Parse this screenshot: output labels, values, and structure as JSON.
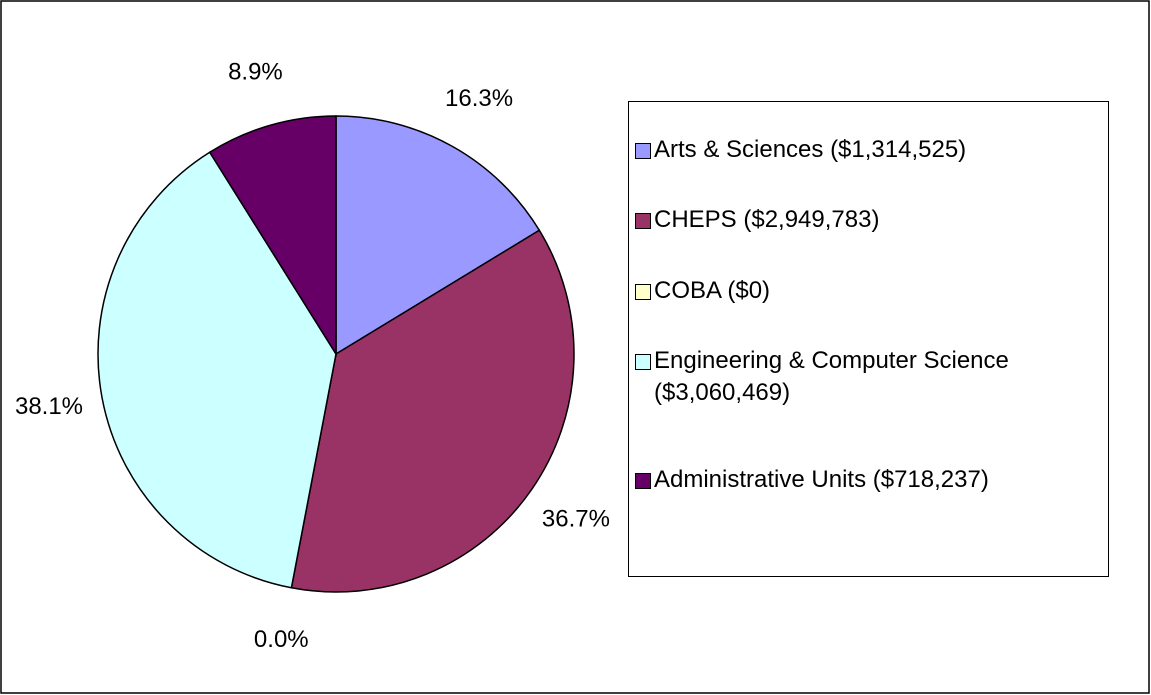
{
  "chart_data": {
    "type": "pie",
    "categories": [
      "Arts & Sciences ($1,314,525)",
      "CHEPS ($2,949,783)",
      "COBA ($0)",
      "Engineering & Computer Science ($3,060,469)",
      "Administrative Units ($718,237)"
    ],
    "values": [
      16.3,
      36.7,
      0.0,
      38.1,
      8.9
    ],
    "value_labels": [
      "16.3%",
      "36.7%",
      "0.0%",
      "38.1%",
      "8.9%"
    ],
    "colors": [
      "#9999ff",
      "#993366",
      "#ffffcc",
      "#ccffff",
      "#660066"
    ],
    "legend": "right"
  }
}
